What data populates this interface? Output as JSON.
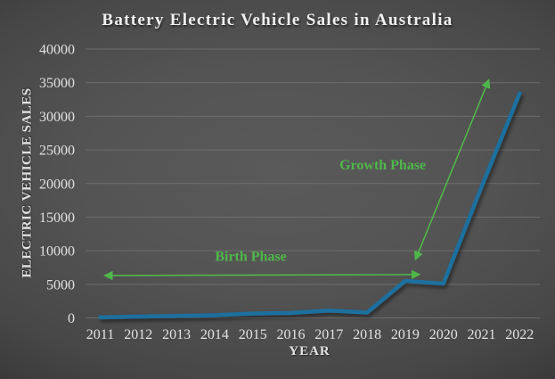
{
  "chart": {
    "title": "Battery Electric Vehicle Sales in Australia"
  },
  "colors": {
    "line": "#1f6f9f",
    "annotation": "#4fb74a",
    "tick_text": "#e2e2e2",
    "grid": "#747474",
    "bg_center": "#5a5a5a",
    "bg_edge": "#222222"
  },
  "chart_data": {
    "type": "line",
    "title": "Battery Electric Vehicle Sales in Australia",
    "xlabel": "YEAR",
    "ylabel": "ELECTRIC VEHICLE SALES",
    "x": [
      2011,
      2012,
      2013,
      2014,
      2015,
      2016,
      2017,
      2018,
      2019,
      2020,
      2021,
      2022
    ],
    "values": [
      80,
      200,
      300,
      400,
      650,
      750,
      1100,
      800,
      5500,
      5100,
      19500,
      33400
    ],
    "ylim": [
      0,
      40000
    ],
    "ytick_step": 5000,
    "grid": true,
    "legend": "none",
    "annotations": [
      {
        "id": "birth-phase",
        "label": "Birth Phase",
        "arrow": {
          "from": {
            "year": 2011.12,
            "value": 6300
          },
          "to": {
            "year": 2019.37,
            "value": 6450
          }
        },
        "label_pos": {
          "year": 2014.95,
          "value": 9100
        }
      },
      {
        "id": "growth-phase",
        "label": "Growth Phase",
        "arrow": {
          "from": {
            "year": 2019.27,
            "value": 8700
          },
          "to": {
            "year": 2021.19,
            "value": 35400
          }
        },
        "label_pos": {
          "year": 2018.41,
          "value": 22700
        }
      }
    ]
  }
}
